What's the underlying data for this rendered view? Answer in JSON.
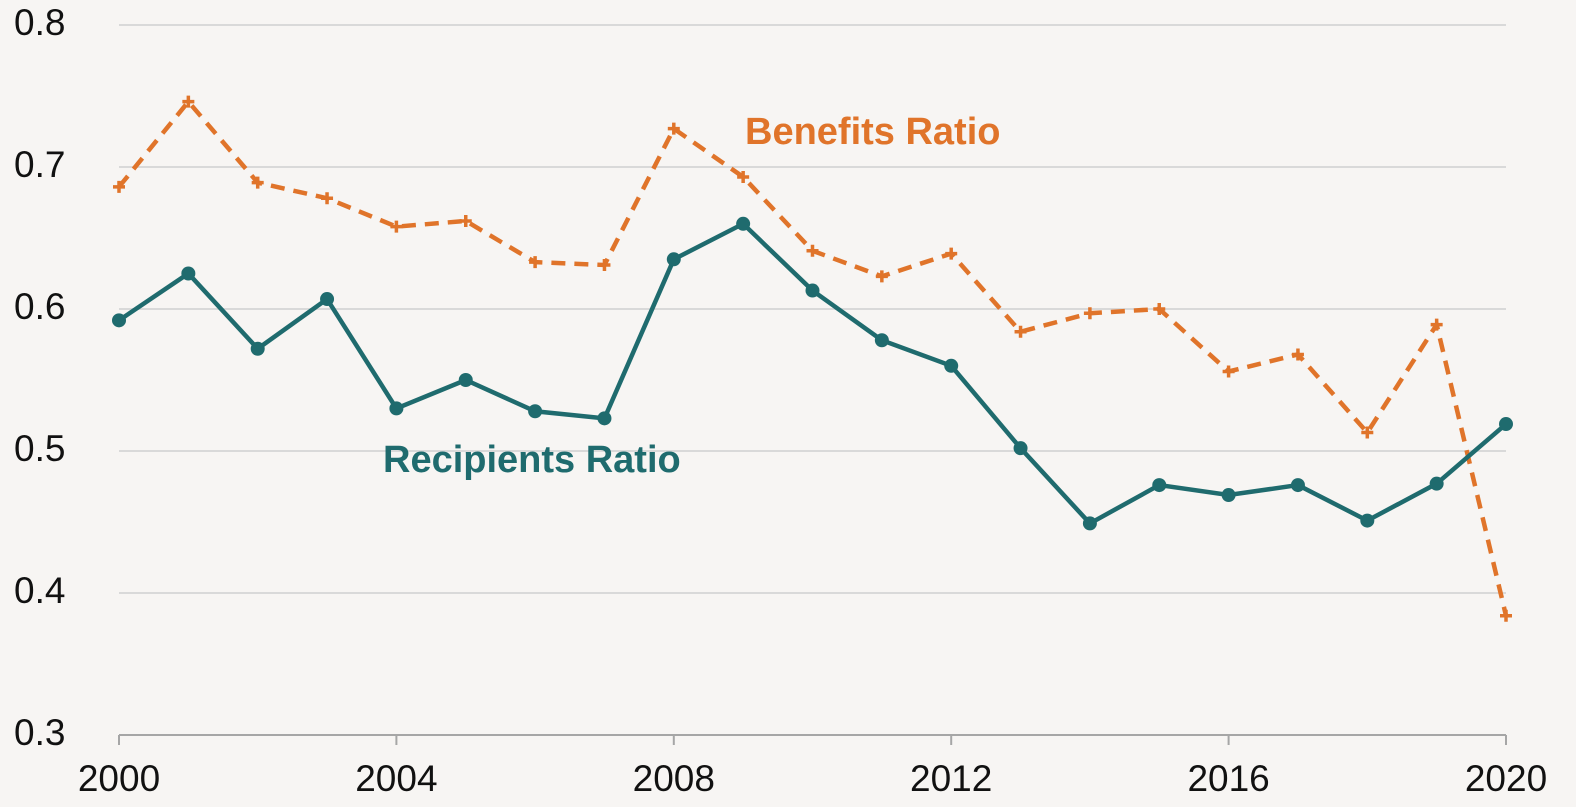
{
  "chart_data": {
    "type": "line",
    "x": [
      2000,
      2001,
      2002,
      2003,
      2004,
      2005,
      2006,
      2007,
      2008,
      2009,
      2010,
      2011,
      2012,
      2013,
      2014,
      2015,
      2016,
      2017,
      2018,
      2019,
      2020
    ],
    "series": [
      {
        "name": "Benefits Ratio",
        "color": "#e0742a",
        "dash": true,
        "values": [
          0.686,
          0.746,
          0.689,
          0.678,
          0.658,
          0.662,
          0.633,
          0.631,
          0.727,
          0.693,
          0.641,
          0.623,
          0.639,
          0.584,
          0.597,
          0.6,
          0.556,
          0.568,
          0.513,
          0.589,
          0.384
        ]
      },
      {
        "name": "Recipients Ratio",
        "color": "#1f6b6e",
        "dash": false,
        "values": [
          0.592,
          0.625,
          0.572,
          0.607,
          0.53,
          0.55,
          0.528,
          0.523,
          0.635,
          0.66,
          0.613,
          0.578,
          0.56,
          0.502,
          0.449,
          0.476,
          0.469,
          0.476,
          0.451,
          0.477,
          0.519
        ]
      }
    ],
    "xlim": [
      2000,
      2020
    ],
    "xticks": [
      2000,
      2004,
      2008,
      2012,
      2016,
      2020
    ],
    "ylim": [
      0.3,
      0.8
    ],
    "yticks": [
      0.3,
      0.4,
      0.5,
      0.6,
      0.7,
      0.8
    ],
    "grid": true
  }
}
